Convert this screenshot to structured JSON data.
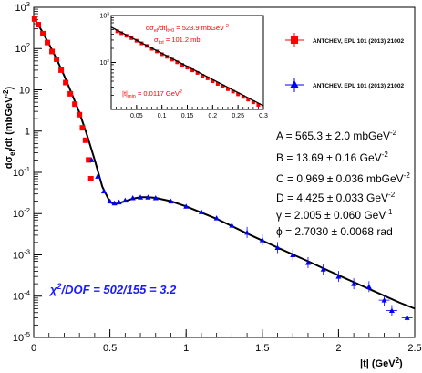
{
  "chart_data": [
    {
      "type": "scatter",
      "ylabel_main": "dσ",
      "ylabel_sub": "el",
      "ylabel_rest": "/dt (mbGeV",
      "ylabel_sup": "-2",
      "ylabel_close": ")",
      "xlabel_main": "|t| (GeV",
      "xlabel_sup": "2",
      "xlabel_close": ")",
      "x_scale": "linear",
      "y_scale": "log",
      "xlim": [
        0,
        2.5
      ],
      "ylim": [
        1e-05,
        1000
      ],
      "x_ticks": [
        {
          "v": 0,
          "label": "0"
        },
        {
          "v": 0.5,
          "label": "0.5"
        },
        {
          "v": 1,
          "label": "1"
        },
        {
          "v": 1.5,
          "label": "1.5"
        },
        {
          "v": 2,
          "label": "2"
        },
        {
          "v": 2.5,
          "label": "2.5"
        }
      ],
      "y_ticks": [
        {
          "e": -5,
          "base": "10",
          "exp": "-5"
        },
        {
          "e": -4,
          "base": "10",
          "exp": "-4"
        },
        {
          "e": -3,
          "base": "10",
          "exp": "-3"
        },
        {
          "e": -2,
          "base": "10",
          "exp": "-2"
        },
        {
          "e": -1,
          "base": "10",
          "exp": "-1"
        },
        {
          "e": 0,
          "base": "1",
          "exp": ""
        },
        {
          "e": 1,
          "base": "10",
          "exp": ""
        },
        {
          "e": 2,
          "base": "10",
          "exp": "2"
        },
        {
          "e": 3,
          "base": "10",
          "exp": "3"
        }
      ],
      "fit_curve": {
        "color": "#000000",
        "x": [
          0,
          0.05,
          0.1,
          0.15,
          0.2,
          0.25,
          0.3,
          0.35,
          0.4,
          0.45,
          0.5,
          0.53,
          0.56,
          0.6,
          0.65,
          0.7,
          0.75,
          0.8,
          0.9,
          1.0,
          1.2,
          1.4,
          1.6,
          1.8,
          2.0,
          2.2,
          2.4,
          2.5
        ],
        "y": [
          565.3,
          280,
          130,
          56,
          22,
          8,
          2.8,
          0.8,
          0.2,
          0.045,
          0.019,
          0.017,
          0.018,
          0.02,
          0.023,
          0.025,
          0.025,
          0.024,
          0.02,
          0.015,
          0.0075,
          0.0033,
          0.0015,
          0.0007,
          0.00032,
          0.00015,
          7e-05,
          5e-05
        ]
      },
      "series": [
        {
          "name": "ANTCHEV, EPL 101 (2013) 21002",
          "color": "#ff0000",
          "marker": "square",
          "x": [
            0.005,
            0.03,
            0.06,
            0.09,
            0.12,
            0.15,
            0.18,
            0.21,
            0.24,
            0.27,
            0.3,
            0.32,
            0.34,
            0.36,
            0.375
          ],
          "y": [
            520,
            380,
            230,
            140,
            85,
            55,
            30,
            15,
            8,
            4.5,
            2.5,
            1.2,
            0.6,
            0.2,
            0.07
          ]
        },
        {
          "name": "ANTCHEV, EPL 101 (2013) 21002",
          "color": "#0000ff",
          "marker": "triangle",
          "x": [
            0.38,
            0.42,
            0.46,
            0.5,
            0.53,
            0.56,
            0.6,
            0.65,
            0.7,
            0.75,
            0.8,
            0.9,
            1.0,
            1.1,
            1.2,
            1.3,
            1.4,
            1.5,
            1.6,
            1.7,
            1.8,
            1.9,
            2.0,
            2.1,
            2.2,
            2.3,
            2.35,
            2.45
          ],
          "y": [
            0.2,
            0.08,
            0.035,
            0.02,
            0.018,
            0.019,
            0.021,
            0.024,
            0.025,
            0.025,
            0.024,
            0.02,
            0.015,
            0.011,
            0.0078,
            0.0052,
            0.0035,
            0.0023,
            0.0015,
            0.001,
            0.00065,
            0.00045,
            0.0003,
            0.0002,
            0.00017,
            8e-05,
            4.5e-05,
            3e-05
          ]
        }
      ],
      "params": [
        {
          "lhs": "A",
          "val": "565.3 ± 2.0  mbGeV",
          "sup": "-2"
        },
        {
          "lhs": "B",
          "val": "13.69 ± 0.16 GeV",
          "sup": "-2"
        },
        {
          "lhs": "C",
          "val": "0.969 ± 0.036 mbGeV",
          "sup": "-2"
        },
        {
          "lhs": "D",
          "val": "4.425 ± 0.033 GeV",
          "sup": "-2"
        },
        {
          "lhs": "γ",
          "val": "2.005 ± 0.060 GeV",
          "sup": "-1"
        },
        {
          "lhs": "ϕ",
          "val": "2.7030 ± 0.0068 rad",
          "sup": ""
        }
      ],
      "chi2_prefix": "χ",
      "chi2_sup": "2",
      "chi2_rest": "/DOF = 502/155 = 3.2",
      "chi2_color": "#1a1aff",
      "legend": [
        {
          "label": "ANTCHEV, EPL 101 (2013) 21002",
          "color": "#ff0000",
          "marker": "square"
        },
        {
          "label": "ANTCHEV, EPL 101 (2013) 21002",
          "color": "#0000ff",
          "marker": "triangle"
        }
      ]
    },
    {
      "type": "scatter",
      "x_scale": "linear",
      "y_scale": "log",
      "xlim": [
        0,
        0.3
      ],
      "ylim": [
        10,
        1000
      ],
      "x_ticks": [
        {
          "v": 0.05,
          "label": "0.05"
        },
        {
          "v": 0.1,
          "label": "0.1"
        },
        {
          "v": 0.15,
          "label": "0.15"
        },
        {
          "v": 0.2,
          "label": "0.2"
        },
        {
          "v": 0.25,
          "label": "0.25"
        },
        {
          "v": 0.3,
          "label": "0.3"
        }
      ],
      "y_ticks": [
        {
          "e": 2,
          "base": "10",
          "exp": "2"
        },
        {
          "e": 3,
          "base": "10",
          "exp": "3"
        }
      ],
      "fit_line": {
        "x": [
          0.0,
          0.3
        ],
        "y": [
          565.3,
          12
        ]
      },
      "series": [
        {
          "color": "#ff0000",
          "marker": "square",
          "x": [
            0.012,
            0.02,
            0.03,
            0.04,
            0.05,
            0.06,
            0.07,
            0.08,
            0.09,
            0.1,
            0.11,
            0.12,
            0.13,
            0.14,
            0.15,
            0.16,
            0.17,
            0.18,
            0.19,
            0.2,
            0.21,
            0.22,
            0.23,
            0.24,
            0.25,
            0.26,
            0.27,
            0.28,
            0.29
          ],
          "y": [
            460,
            420,
            370,
            330,
            290,
            255,
            225,
            195,
            172,
            150,
            132,
            115,
            101,
            89,
            78,
            68,
            60,
            52,
            46,
            40,
            35,
            31,
            27,
            24,
            21,
            18.5,
            16.2,
            14.2,
            12.5
          ]
        }
      ],
      "annotation_top_main": "dσ",
      "annotation_top_sub1": "el",
      "annotation_top_mid": "/dt|",
      "annotation_top_sub2": "t=0",
      "annotation_top_val": " = 523.9 mbGeV",
      "annotation_top_sup": "-2",
      "annotation_mid_main": "σ",
      "annotation_mid_sub": "tot",
      "annotation_mid_val": " = 101.2 mb",
      "annotation_low_main": "|t|",
      "annotation_low_sub": "min",
      "annotation_low_val": " = 0.0117 GeV",
      "annotation_low_sup": "2",
      "annotation_color": "#ff0000"
    }
  ]
}
